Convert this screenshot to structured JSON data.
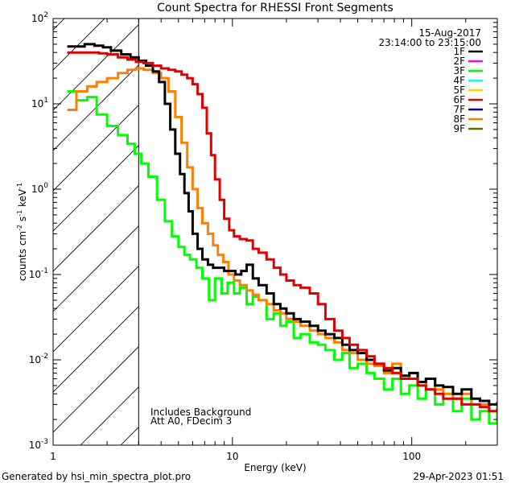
{
  "chart_data": {
    "type": "line",
    "title": "Count Spectra for RHESSI Front Segments",
    "xlabel": "Energy (keV)",
    "ylabel": "counts cm",
    "ylabel_exps": [
      "-2",
      "-1",
      "-1"
    ],
    "ylabel_mid": [
      " s",
      " keV"
    ],
    "xscale": "log",
    "yscale": "log",
    "xlim": [
      1,
      300
    ],
    "ylim": [
      0.001,
      100
    ],
    "x_ticks": [
      {
        "value": 1,
        "label": "1"
      },
      {
        "value": 10,
        "label": "10"
      },
      {
        "value": 100,
        "label": "100"
      }
    ],
    "y_ticks": [
      {
        "value": 0.001,
        "base": "10",
        "exp": "-3"
      },
      {
        "value": 0.01,
        "base": "10",
        "exp": "-2"
      },
      {
        "value": 0.1,
        "base": "10",
        "exp": "-1"
      },
      {
        "value": 1,
        "base": "10",
        "exp": "0"
      },
      {
        "value": 10,
        "base": "10",
        "exp": "1"
      },
      {
        "value": 100,
        "base": "10",
        "exp": "2"
      }
    ],
    "date": "15-Aug-2017",
    "time_range": "23:14:00 to 23:15:00",
    "annotations": [
      "Includes Background",
      "Att A0, FDecim 3"
    ],
    "threshold_energy": 3,
    "footer_left": "Generated by hsi_min_spectra_plot.pro",
    "footer_right": "29-Apr-2023 01:51",
    "legend": [
      {
        "name": "1F",
        "color": "#000000"
      },
      {
        "name": "2F",
        "color": "#ff00ff"
      },
      {
        "name": "3F",
        "color": "#00ff00"
      },
      {
        "name": "4F",
        "color": "#00ffff"
      },
      {
        "name": "5F",
        "color": "#ffd700"
      },
      {
        "name": "6F",
        "color": "#e00000"
      },
      {
        "name": "7F",
        "color": "#0000c0"
      },
      {
        "name": "8F",
        "color": "#ff8000"
      },
      {
        "name": "9F",
        "color": "#6b6b00"
      }
    ],
    "series": [
      {
        "name": "3F",
        "color": "#00ff00",
        "points": [
          [
            1.2,
            14
          ],
          [
            1.35,
            11
          ],
          [
            1.55,
            12
          ],
          [
            1.75,
            7.5
          ],
          [
            2.0,
            5.5
          ],
          [
            2.3,
            4.3
          ],
          [
            2.6,
            3.4
          ],
          [
            2.85,
            2.6
          ],
          [
            3.1,
            2.0
          ],
          [
            3.4,
            1.4
          ],
          [
            3.8,
            0.75
          ],
          [
            4.2,
            0.42
          ],
          [
            4.6,
            0.28
          ],
          [
            5.0,
            0.21
          ],
          [
            5.4,
            0.17
          ],
          [
            5.8,
            0.15
          ],
          [
            6.3,
            0.12
          ],
          [
            6.8,
            0.09
          ],
          [
            7.4,
            0.05
          ],
          [
            8.0,
            0.09
          ],
          [
            8.7,
            0.06
          ],
          [
            9.4,
            0.08
          ],
          [
            10.2,
            0.06
          ],
          [
            11.0,
            0.07
          ],
          [
            12.0,
            0.045
          ],
          [
            13.0,
            0.055
          ],
          [
            14.0,
            0.05
          ],
          [
            15.5,
            0.03
          ],
          [
            17.0,
            0.035
          ],
          [
            18.5,
            0.025
          ],
          [
            20.0,
            0.028
          ],
          [
            22.0,
            0.018
          ],
          [
            24.0,
            0.02
          ],
          [
            27.0,
            0.016
          ],
          [
            30.0,
            0.015
          ],
          [
            33.0,
            0.013
          ],
          [
            37.0,
            0.01
          ],
          [
            41.0,
            0.012
          ],
          [
            45.0,
            0.008
          ],
          [
            50.0,
            0.009
          ],
          [
            56.0,
            0.007
          ],
          [
            62.0,
            0.006
          ],
          [
            70.0,
            0.0045
          ],
          [
            78.0,
            0.006
          ],
          [
            87.0,
            0.004
          ],
          [
            97.0,
            0.005
          ],
          [
            108.0,
            0.0035
          ],
          [
            120.0,
            0.0045
          ],
          [
            135.0,
            0.003
          ],
          [
            150.0,
            0.004
          ],
          [
            170.0,
            0.0025
          ],
          [
            190.0,
            0.0035
          ],
          [
            215.0,
            0.002
          ],
          [
            240.0,
            0.0025
          ],
          [
            270.0,
            0.0018
          ],
          [
            300.0,
            0.003
          ]
        ]
      },
      {
        "name": "8F",
        "color": "#ff8000",
        "points": [
          [
            1.2,
            8.5
          ],
          [
            1.35,
            14
          ],
          [
            1.55,
            16
          ],
          [
            1.75,
            18
          ],
          [
            2.0,
            20
          ],
          [
            2.3,
            23
          ],
          [
            2.6,
            25
          ],
          [
            2.9,
            26
          ],
          [
            3.2,
            25
          ],
          [
            3.6,
            23
          ],
          [
            4.0,
            20
          ],
          [
            4.4,
            14
          ],
          [
            4.8,
            7
          ],
          [
            5.2,
            3.5
          ],
          [
            5.6,
            1.8
          ],
          [
            6.0,
            1.0
          ],
          [
            6.4,
            0.6
          ],
          [
            6.8,
            0.4
          ],
          [
            7.3,
            0.3
          ],
          [
            7.8,
            0.22
          ],
          [
            8.3,
            0.17
          ],
          [
            8.9,
            0.14
          ],
          [
            9.5,
            0.1
          ],
          [
            10.2,
            0.085
          ],
          [
            11.0,
            0.075
          ],
          [
            12.0,
            0.065
          ],
          [
            13.0,
            0.058
          ],
          [
            14.0,
            0.05
          ],
          [
            15.5,
            0.045
          ],
          [
            17.0,
            0.038
          ],
          [
            18.5,
            0.035
          ],
          [
            20.0,
            0.03
          ],
          [
            22.0,
            0.028
          ],
          [
            24.0,
            0.025
          ],
          [
            27.0,
            0.022
          ],
          [
            30.0,
            0.02
          ],
          [
            33.0,
            0.018
          ],
          [
            37.0,
            0.016
          ],
          [
            41.0,
            0.013
          ],
          [
            45.0,
            0.012
          ],
          [
            50.0,
            0.01
          ],
          [
            56.0,
            0.009
          ],
          [
            62.0,
            0.0085
          ],
          [
            70.0,
            0.007
          ],
          [
            78.0,
            0.009
          ],
          [
            87.0,
            0.006
          ],
          [
            97.0,
            0.007
          ],
          [
            108.0,
            0.005
          ],
          [
            120.0,
            0.006
          ],
          [
            135.0,
            0.0045
          ],
          [
            150.0,
            0.004
          ],
          [
            170.0,
            0.0035
          ],
          [
            190.0,
            0.004
          ],
          [
            215.0,
            0.003
          ],
          [
            240.0,
            0.003
          ],
          [
            270.0,
            0.0025
          ],
          [
            300.0,
            0.0028
          ]
        ]
      },
      {
        "name": "1F",
        "color": "#000000",
        "points": [
          [
            1.2,
            47
          ],
          [
            1.35,
            47
          ],
          [
            1.5,
            50
          ],
          [
            1.7,
            48
          ],
          [
            1.9,
            46
          ],
          [
            2.1,
            42
          ],
          [
            2.4,
            38
          ],
          [
            2.7,
            35
          ],
          [
            3.0,
            32
          ],
          [
            3.3,
            28
          ],
          [
            3.6,
            24
          ],
          [
            3.9,
            18
          ],
          [
            4.2,
            10
          ],
          [
            4.5,
            5
          ],
          [
            4.8,
            2.6
          ],
          [
            5.1,
            1.5
          ],
          [
            5.4,
            0.9
          ],
          [
            5.7,
            0.55
          ],
          [
            6.0,
            0.3
          ],
          [
            6.4,
            0.2
          ],
          [
            6.8,
            0.15
          ],
          [
            7.3,
            0.13
          ],
          [
            7.8,
            0.12
          ],
          [
            8.4,
            0.12
          ],
          [
            9.0,
            0.11
          ],
          [
            9.7,
            0.11
          ],
          [
            10.4,
            0.1
          ],
          [
            11.2,
            0.11
          ],
          [
            12.0,
            0.13
          ],
          [
            13.0,
            0.09
          ],
          [
            14.0,
            0.075
          ],
          [
            15.5,
            0.06
          ],
          [
            17.0,
            0.045
          ],
          [
            18.5,
            0.04
          ],
          [
            20.0,
            0.035
          ],
          [
            22.0,
            0.03
          ],
          [
            24.0,
            0.028
          ],
          [
            27.0,
            0.025
          ],
          [
            30.0,
            0.022
          ],
          [
            33.0,
            0.02
          ],
          [
            37.0,
            0.018
          ],
          [
            41.0,
            0.015
          ],
          [
            45.0,
            0.013
          ],
          [
            50.0,
            0.012
          ],
          [
            56.0,
            0.01
          ],
          [
            62.0,
            0.009
          ],
          [
            70.0,
            0.0075
          ],
          [
            78.0,
            0.008
          ],
          [
            87.0,
            0.0065
          ],
          [
            97.0,
            0.007
          ],
          [
            108.0,
            0.0055
          ],
          [
            120.0,
            0.006
          ],
          [
            135.0,
            0.005
          ],
          [
            150.0,
            0.0048
          ],
          [
            170.0,
            0.004
          ],
          [
            190.0,
            0.0045
          ],
          [
            215.0,
            0.0035
          ],
          [
            240.0,
            0.0033
          ],
          [
            270.0,
            0.003
          ],
          [
            300.0,
            0.0032
          ]
        ]
      },
      {
        "name": "6F",
        "color": "#e00000",
        "points": [
          [
            1.2,
            40
          ],
          [
            1.4,
            40
          ],
          [
            1.6,
            40
          ],
          [
            1.8,
            39
          ],
          [
            2.0,
            38
          ],
          [
            2.3,
            35
          ],
          [
            2.6,
            33
          ],
          [
            2.9,
            31
          ],
          [
            3.2,
            30
          ],
          [
            3.6,
            28
          ],
          [
            4.0,
            26
          ],
          [
            4.4,
            25
          ],
          [
            4.8,
            24
          ],
          [
            5.2,
            22
          ],
          [
            5.6,
            20
          ],
          [
            6.0,
            17
          ],
          [
            6.4,
            13
          ],
          [
            6.8,
            9
          ],
          [
            7.2,
            4.5
          ],
          [
            7.6,
            2.5
          ],
          [
            8.0,
            1.3
          ],
          [
            8.5,
            0.75
          ],
          [
            9.0,
            0.45
          ],
          [
            9.6,
            0.33
          ],
          [
            10.2,
            0.28
          ],
          [
            11.0,
            0.26
          ],
          [
            12.0,
            0.25
          ],
          [
            13.0,
            0.2
          ],
          [
            14.0,
            0.18
          ],
          [
            15.5,
            0.15
          ],
          [
            17.0,
            0.12
          ],
          [
            18.5,
            0.1
          ],
          [
            20.0,
            0.085
          ],
          [
            22.0,
            0.075
          ],
          [
            24.0,
            0.07
          ],
          [
            27.0,
            0.06
          ],
          [
            30.0,
            0.045
          ],
          [
            33.0,
            0.03
          ],
          [
            37.0,
            0.022
          ],
          [
            41.0,
            0.018
          ],
          [
            45.0,
            0.015
          ],
          [
            50.0,
            0.013
          ],
          [
            56.0,
            0.011
          ],
          [
            62.0,
            0.009
          ],
          [
            70.0,
            0.008
          ],
          [
            78.0,
            0.007
          ],
          [
            87.0,
            0.006
          ],
          [
            97.0,
            0.006
          ],
          [
            108.0,
            0.005
          ],
          [
            120.0,
            0.0045
          ],
          [
            135.0,
            0.004
          ],
          [
            150.0,
            0.0035
          ],
          [
            170.0,
            0.0035
          ],
          [
            190.0,
            0.003
          ],
          [
            215.0,
            0.003
          ],
          [
            240.0,
            0.0028
          ],
          [
            270.0,
            0.0025
          ],
          [
            300.0,
            0.0027
          ]
        ]
      }
    ]
  }
}
